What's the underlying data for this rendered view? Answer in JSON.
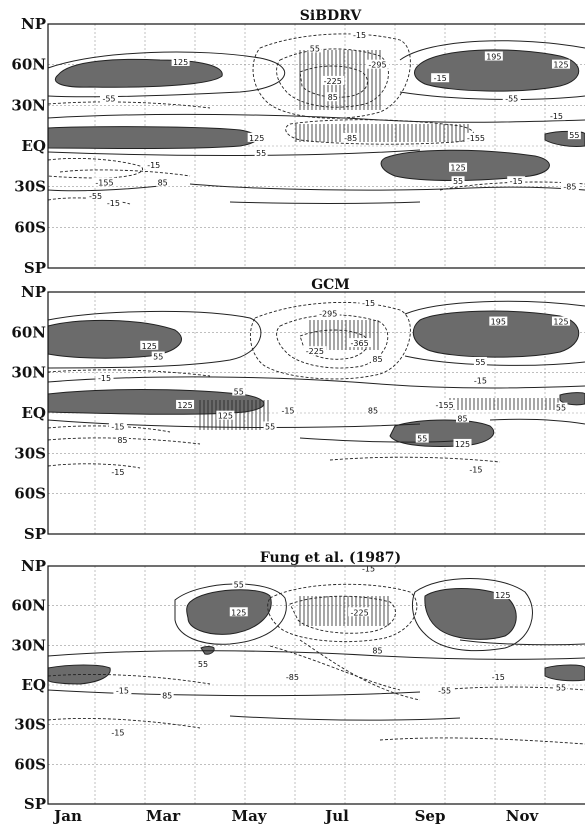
{
  "chart_data": [
    {
      "type": "contour",
      "title": "SiBDRV",
      "y_ticks": [
        "NP",
        "60N",
        "30N",
        "EQ",
        "30S",
        "60S",
        "SP"
      ],
      "x_ticks": [
        "Jan",
        "Mar",
        "May",
        "Jul",
        "Sep",
        "Nov"
      ],
      "contour_labels": [
        {
          "value": "55",
          "month": 6.2,
          "lat": 72
        },
        {
          "value": "-15",
          "month": 7.2,
          "lat": 82
        },
        {
          "value": "125",
          "month": 3.2,
          "lat": 62
        },
        {
          "value": "195",
          "month": 10.2,
          "lat": 66
        },
        {
          "value": "125",
          "month": 11.7,
          "lat": 60
        },
        {
          "value": "-295",
          "month": 7.6,
          "lat": 60
        },
        {
          "value": "-225",
          "month": 6.6,
          "lat": 48
        },
        {
          "value": "-55",
          "month": 1.6,
          "lat": 35
        },
        {
          "value": "85",
          "month": 6.6,
          "lat": 36
        },
        {
          "value": "-55",
          "month": 10.6,
          "lat": 35
        },
        {
          "value": "-15",
          "month": 11.6,
          "lat": 22
        },
        {
          "value": "125",
          "month": 4.9,
          "lat": 6
        },
        {
          "value": "-85",
          "month": 7.0,
          "lat": 6
        },
        {
          "value": "55",
          "month": 12.0,
          "lat": 8
        },
        {
          "value": "-155",
          "month": 9.8,
          "lat": 6
        },
        {
          "value": "55",
          "month": 5.0,
          "lat": -5
        },
        {
          "value": "-15",
          "month": 2.6,
          "lat": -14
        },
        {
          "value": "125",
          "month": 9.4,
          "lat": -16
        },
        {
          "value": "-155",
          "month": 1.5,
          "lat": -27
        },
        {
          "value": "85",
          "month": 2.8,
          "lat": -27
        },
        {
          "value": "-55",
          "month": 1.3,
          "lat": -37
        },
        {
          "value": "-15",
          "month": 1.7,
          "lat": -42
        },
        {
          "value": "55",
          "month": 9.4,
          "lat": -26
        },
        {
          "value": "-15",
          "month": 10.7,
          "lat": -26
        },
        {
          "value": "-85",
          "month": 11.9,
          "lat": -30
        },
        {
          "value": "-15",
          "month": 9.0,
          "lat": 50
        }
      ]
    },
    {
      "type": "contour",
      "title": "GCM",
      "y_ticks": [
        "NP",
        "60N",
        "30N",
        "EQ",
        "30S",
        "60S",
        "SP"
      ],
      "x_ticks": [
        "Jan",
        "Mar",
        "May",
        "Jul",
        "Sep",
        "Nov"
      ],
      "contour_labels": [
        {
          "value": "-15",
          "month": 7.4,
          "lat": 82
        },
        {
          "value": "-295",
          "month": 6.5,
          "lat": 74
        },
        {
          "value": "195",
          "month": 10.3,
          "lat": 68
        },
        {
          "value": "125",
          "month": 11.7,
          "lat": 68
        },
        {
          "value": "125",
          "month": 2.5,
          "lat": 50
        },
        {
          "value": "-365",
          "month": 7.2,
          "lat": 52
        },
        {
          "value": "-225",
          "month": 6.2,
          "lat": 46
        },
        {
          "value": "55",
          "month": 2.7,
          "lat": 42
        },
        {
          "value": "85",
          "month": 7.6,
          "lat": 40
        },
        {
          "value": "55",
          "month": 9.9,
          "lat": 38
        },
        {
          "value": "-15",
          "month": 1.5,
          "lat": 26
        },
        {
          "value": "-15",
          "month": 9.9,
          "lat": 24
        },
        {
          "value": "55",
          "month": 4.5,
          "lat": 16
        },
        {
          "value": "-15",
          "month": 12.3,
          "lat": 16
        },
        {
          "value": "125",
          "month": 3.3,
          "lat": 6
        },
        {
          "value": "-15",
          "month": 5.6,
          "lat": 2
        },
        {
          "value": "85",
          "month": 7.5,
          "lat": 2
        },
        {
          "value": "-155",
          "month": 9.1,
          "lat": 6
        },
        {
          "value": "125",
          "month": 4.2,
          "lat": -2
        },
        {
          "value": "55",
          "month": 5.2,
          "lat": -10
        },
        {
          "value": "-15",
          "month": 1.8,
          "lat": -10
        },
        {
          "value": "85",
          "month": 9.5,
          "lat": -4
        },
        {
          "value": "55",
          "month": 11.7,
          "lat": 4
        },
        {
          "value": "85",
          "month": 1.9,
          "lat": -20
        },
        {
          "value": "55",
          "month": 8.6,
          "lat": -19
        },
        {
          "value": "125",
          "month": 9.5,
          "lat": -23
        },
        {
          "value": "-15",
          "month": 1.8,
          "lat": -44
        },
        {
          "value": "-15",
          "month": 9.8,
          "lat": -42
        }
      ]
    },
    {
      "type": "contour",
      "title": "Fung et al. (1987)",
      "y_ticks": [
        "NP",
        "60N",
        "30N",
        "EQ",
        "30S",
        "60S",
        "SP"
      ],
      "x_ticks": [
        "Jan",
        "Mar",
        "May",
        "Jul",
        "Sep",
        "Nov"
      ],
      "contour_labels": [
        {
          "value": "-15",
          "month": 7.4,
          "lat": 88
        },
        {
          "value": "55",
          "month": 4.5,
          "lat": 76
        },
        {
          "value": "125",
          "month": 10.4,
          "lat": 68
        },
        {
          "value": "125",
          "month": 4.5,
          "lat": 55
        },
        {
          "value": "-225",
          "month": 7.2,
          "lat": 55
        },
        {
          "value": "85",
          "month": 7.6,
          "lat": 26
        },
        {
          "value": "55",
          "month": 3.7,
          "lat": 16
        },
        {
          "value": "-85",
          "month": 5.7,
          "lat": 6
        },
        {
          "value": "-15",
          "month": 10.3,
          "lat": 6
        },
        {
          "value": "-15",
          "month": 1.9,
          "lat": -4
        },
        {
          "value": "85",
          "month": 2.9,
          "lat": -8
        },
        {
          "value": "-55",
          "month": 9.1,
          "lat": -4
        },
        {
          "value": "55",
          "month": 11.7,
          "lat": -2
        },
        {
          "value": "-15",
          "month": 1.8,
          "lat": -36
        }
      ]
    }
  ]
}
